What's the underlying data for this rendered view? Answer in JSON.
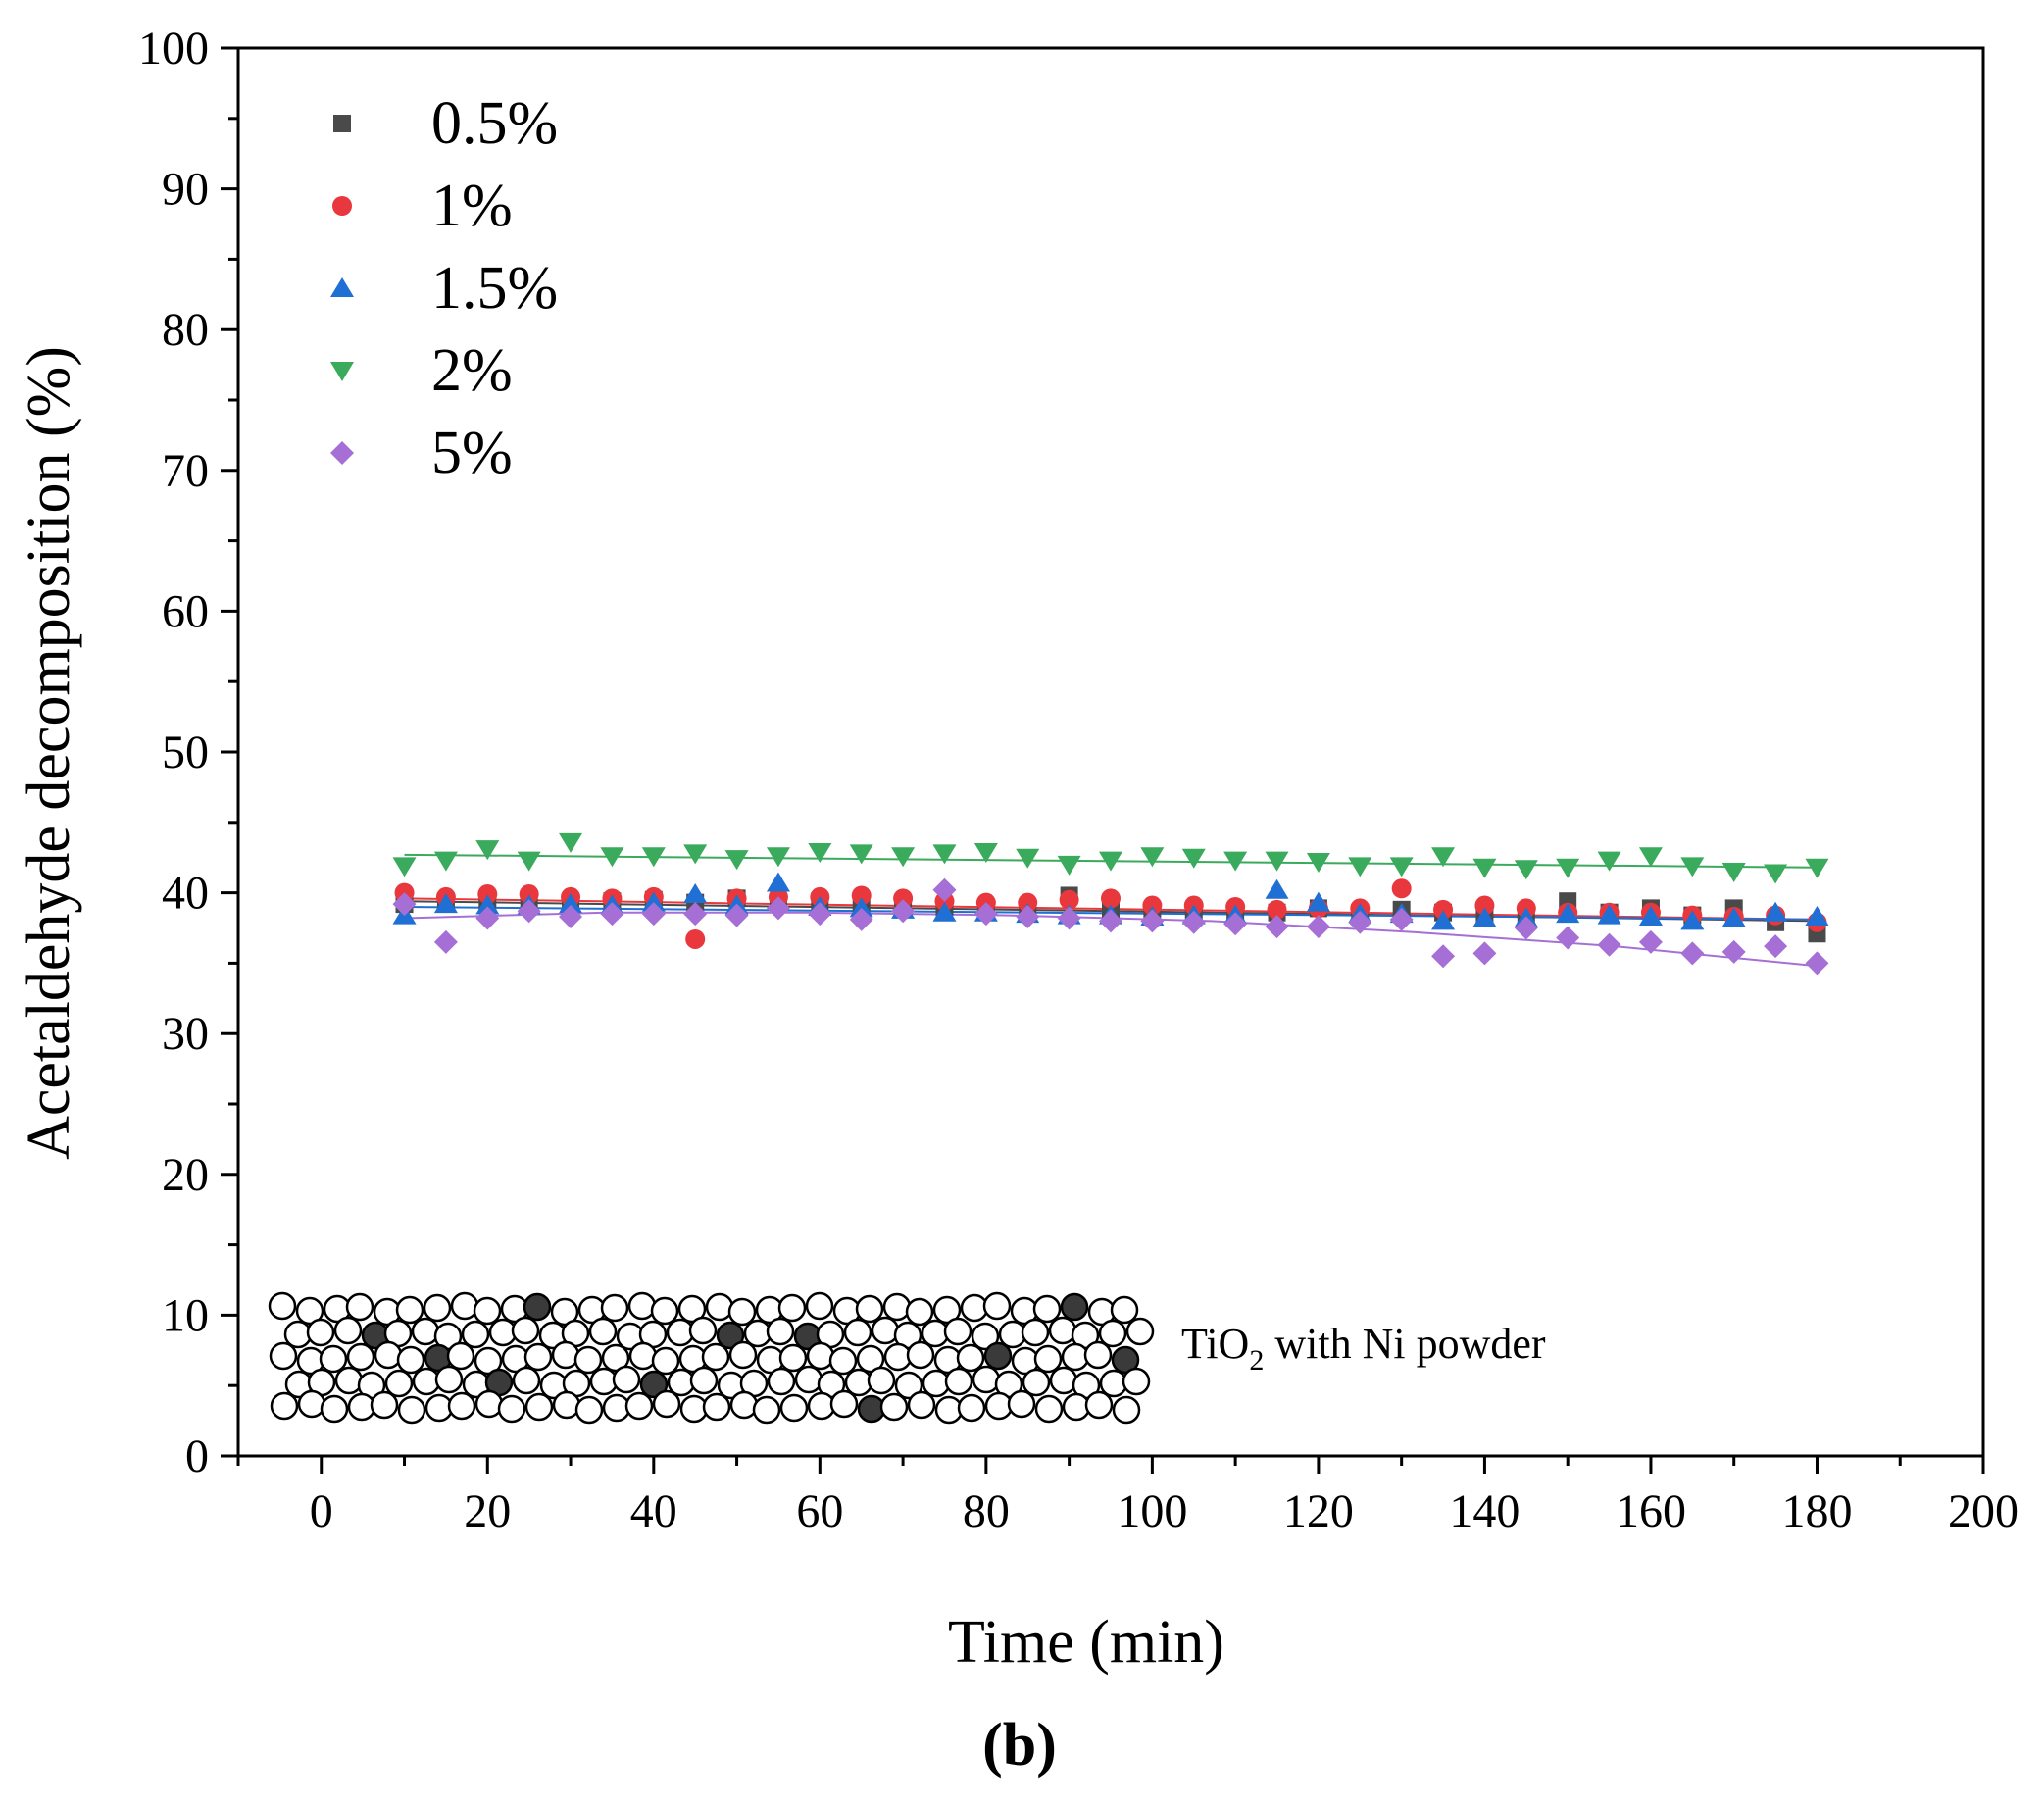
{
  "chart_data": {
    "type": "scatter",
    "title": "",
    "xlabel": "Time (min)",
    "ylabel": "Acetaldehyde decomposition (%)",
    "xlim": [
      -10,
      200
    ],
    "ylim": [
      0,
      100
    ],
    "x_ticks": [
      0,
      20,
      40,
      60,
      80,
      100,
      120,
      140,
      160,
      180,
      200
    ],
    "y_ticks": [
      0,
      10,
      20,
      30,
      40,
      50,
      60,
      70,
      80,
      90,
      100
    ],
    "x_tick_labels": [
      "0",
      "20",
      "40",
      "60",
      "80",
      "100",
      "120",
      "140",
      "160",
      "180",
      "200"
    ],
    "y_tick_labels": [
      "0",
      "10",
      "20",
      "30",
      "40",
      "50",
      "60",
      "70",
      "80",
      "90",
      "100"
    ],
    "grid": false,
    "legend_position": "top-left",
    "panel_label": "(b)",
    "annotation": {
      "prefix": "TiO",
      "subscript": "2",
      "suffix": " with Ni powder"
    },
    "x": [
      10,
      15,
      20,
      25,
      30,
      35,
      40,
      45,
      50,
      55,
      60,
      65,
      70,
      75,
      80,
      85,
      90,
      95,
      100,
      105,
      110,
      115,
      120,
      125,
      130,
      135,
      140,
      145,
      150,
      155,
      160,
      165,
      170,
      175,
      180
    ],
    "series": [
      {
        "name": "0.5%",
        "marker": "square",
        "color": "#4a4a4a",
        "values": [
          39.2,
          39.3,
          39.3,
          39.4,
          39.3,
          39.4,
          39.5,
          39.3,
          39.6,
          39.3,
          39.4,
          39.2,
          39.1,
          39.0,
          38.9,
          38.9,
          39.8,
          38.8,
          38.7,
          38.6,
          38.5,
          38.6,
          38.9,
          38.6,
          38.8,
          38.6,
          38.5,
          38.5,
          39.4,
          38.6,
          38.9,
          38.4,
          38.9,
          37.9,
          37.1
        ],
        "fit": [
          39.4,
          38.0
        ]
      },
      {
        "name": "1%",
        "marker": "circle",
        "color": "#e8383d",
        "values": [
          40.0,
          39.7,
          39.9,
          39.9,
          39.7,
          39.6,
          39.7,
          36.7,
          39.6,
          39.7,
          39.7,
          39.8,
          39.6,
          39.4,
          39.3,
          39.3,
          39.5,
          39.6,
          39.1,
          39.1,
          39.0,
          38.8,
          38.9,
          38.9,
          40.3,
          38.8,
          39.1,
          38.9,
          38.6,
          38.6,
          38.6,
          38.4,
          38.3,
          38.4,
          37.9
        ],
        "fit": [
          39.6,
          38.1
        ]
      },
      {
        "name": "1.5%",
        "marker": "triangle-up",
        "color": "#1f6fd4",
        "values": [
          38.4,
          39.2,
          39.1,
          39.1,
          39.2,
          39.1,
          39.3,
          39.9,
          39.1,
          40.7,
          39.0,
          38.9,
          38.8,
          38.6,
          38.6,
          38.5,
          38.4,
          38.4,
          38.3,
          38.4,
          38.4,
          40.2,
          39.3,
          38.5,
          38.5,
          38.0,
          38.2,
          38.2,
          38.5,
          38.4,
          38.3,
          38.0,
          38.2,
          38.6,
          38.3
        ],
        "fit": [
          39.0,
          38.1
        ]
      },
      {
        "name": "2%",
        "marker": "triangle-down",
        "color": "#3aaa5c",
        "values": [
          41.9,
          42.3,
          43.1,
          42.3,
          43.6,
          42.6,
          42.6,
          42.8,
          42.4,
          42.6,
          42.9,
          42.8,
          42.6,
          42.8,
          42.9,
          42.5,
          42.0,
          42.3,
          42.6,
          42.5,
          42.3,
          42.3,
          42.2,
          41.9,
          41.9,
          42.6,
          41.8,
          41.7,
          41.8,
          42.3,
          42.6,
          41.9,
          41.5,
          41.4,
          41.8
        ],
        "fit": [
          42.7,
          41.8
        ]
      },
      {
        "name": "5%",
        "marker": "diamond",
        "color": "#a66fd6",
        "values": [
          39.2,
          36.5,
          38.2,
          38.7,
          38.3,
          38.5,
          38.5,
          38.5,
          38.4,
          38.9,
          38.5,
          38.1,
          38.7,
          40.2,
          38.5,
          38.3,
          38.2,
          38.0,
          38.0,
          37.9,
          37.8,
          37.6,
          37.6,
          37.9,
          38.1,
          35.5,
          35.7,
          37.5,
          36.8,
          36.3,
          36.5,
          35.7,
          35.8,
          36.2,
          35.0
        ],
        "fit": [
          38.2,
          38.6,
          38.6,
          38.4,
          38.0,
          37.2,
          36.2,
          34.8
        ]
      }
    ]
  }
}
